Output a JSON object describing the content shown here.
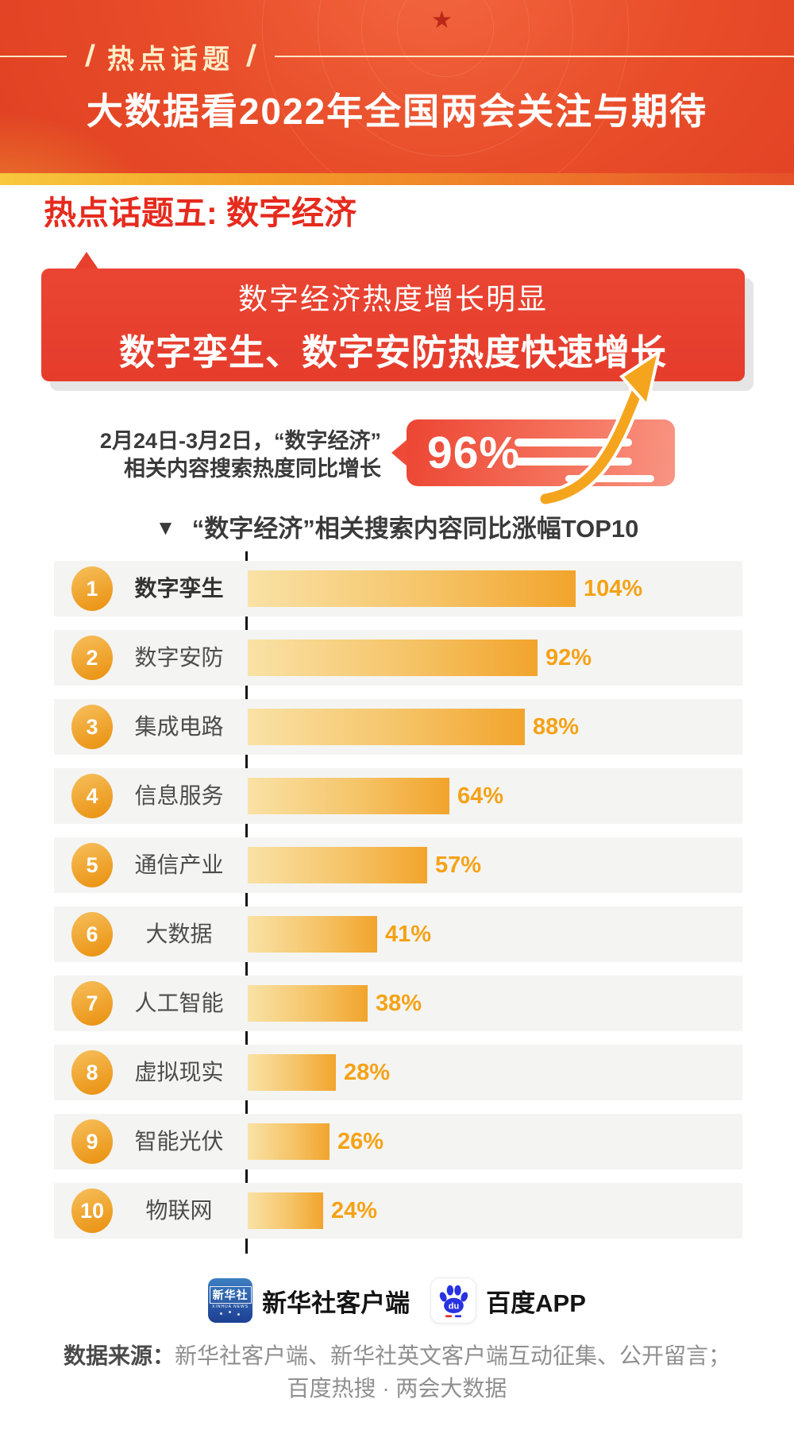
{
  "banner": {
    "tag": "热点话题",
    "slash": "/",
    "title": "大数据看2022年全国两会关注与期待"
  },
  "section": {
    "heading": "热点话题五: 数字经济"
  },
  "callout": {
    "line1": "数字经济热度增长明显",
    "line2": "数字孪生、数字安防热度快速增长"
  },
  "stat": {
    "desc_line1": "2月24日-3月2日，“数字经济”",
    "desc_line2": "相关内容搜索热度同比增长",
    "value": "96%"
  },
  "chart_data": {
    "type": "bar",
    "orientation": "horizontal",
    "marker": "▼",
    "title": "“数字经济”相关搜索内容同比涨幅TOP10",
    "ranks": [
      "1",
      "2",
      "3",
      "4",
      "5",
      "6",
      "7",
      "8",
      "9",
      "10"
    ],
    "categories": [
      "数字孪生",
      "数字安防",
      "集成电路",
      "信息服务",
      "通信产业",
      "大数据",
      "人工智能",
      "虚拟现实",
      "智能光伏",
      "物联网"
    ],
    "values": [
      104,
      92,
      88,
      64,
      57,
      41,
      38,
      28,
      26,
      24
    ],
    "value_labels": [
      "104%",
      "92%",
      "88%",
      "64%",
      "57%",
      "41%",
      "38%",
      "28%",
      "26%",
      "24%"
    ],
    "xlim": [
      0,
      110
    ],
    "grid": false,
    "bar_color_start": "#f9e2a6",
    "bar_color_end": "#f2a42c",
    "value_color": "#f5a216",
    "row_bg": "#f4f4f2"
  },
  "footer": {
    "xinhua_icon_text": "新华社",
    "xinhua_icon_sub": "XINHUA NEWS",
    "xinhua_label": "新华社客户端",
    "baidu_icon_text": "du",
    "baidu_label": "百度APP",
    "source_label": "数据来源：",
    "source_line1": "新华社客户端、新华社英文客户端互动征集、公开留言；",
    "source_line2": "百度热搜 · 两会大数据"
  },
  "colors": {
    "banner_red": "#e84c29",
    "stripe_yellow": "#f8c93d",
    "heading_red": "#e52b1e",
    "callout_red": "#e7402e",
    "badge_red": "#ed4b38",
    "arrow_orange": "#f5a51d",
    "bar_orange": "#f2a42c",
    "text_dark": "#3a3a3a"
  }
}
